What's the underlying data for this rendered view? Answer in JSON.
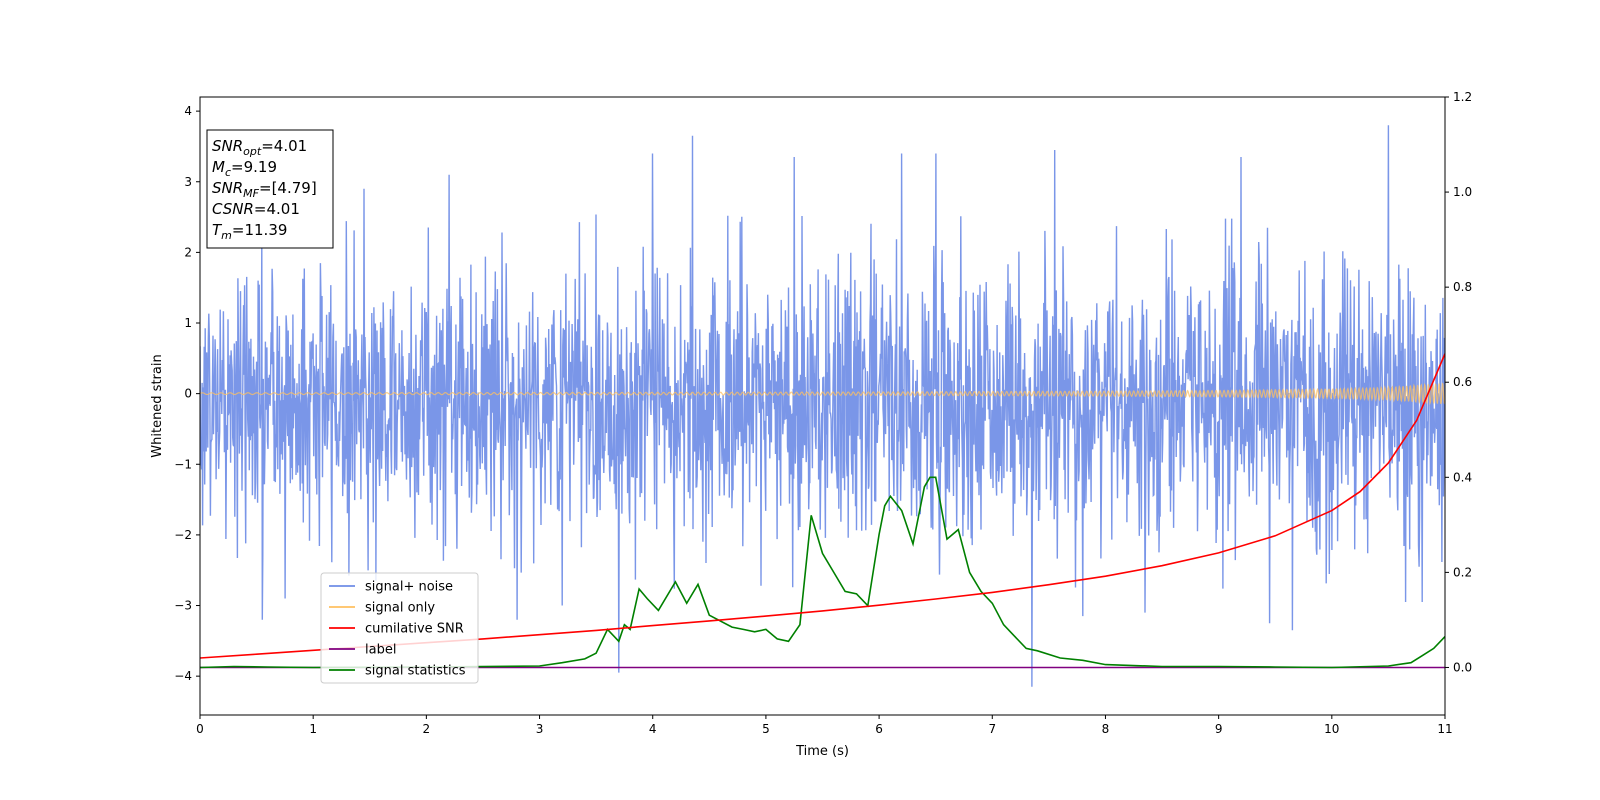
{
  "chart_data": {
    "type": "line",
    "title": "",
    "xlabel": "Time (s)",
    "ylabel": "Whitened strain",
    "y2label": "",
    "xlim": [
      0,
      11
    ],
    "ylim": [
      -4.55,
      4.2
    ],
    "y2lim": [
      -0.1,
      1.2
    ],
    "xticks": [
      0,
      1,
      2,
      3,
      4,
      5,
      6,
      7,
      8,
      9,
      10,
      11
    ],
    "yticks": [
      -4,
      -3,
      -2,
      -1,
      0,
      1,
      2,
      3,
      4
    ],
    "y2ticks": [
      0.0,
      0.2,
      0.4,
      0.6,
      0.8,
      1.0,
      1.2
    ],
    "grid": false,
    "legend_position": "lower-left",
    "series": [
      {
        "name": "signal+ noise",
        "axis": "left",
        "color": "#6f8de6",
        "envelope": {
          "x": [
            0,
            1,
            2,
            3,
            4,
            5,
            6,
            7,
            8,
            9,
            10,
            11
          ],
          "typical_max": [
            1.9,
            2.1,
            2.0,
            2.1,
            2.2,
            2.1,
            2.2,
            2.1,
            2.0,
            2.1,
            2.1,
            2.0
          ],
          "typical_min": [
            -2.2,
            -2.3,
            -2.2,
            -2.3,
            -2.4,
            -2.3,
            -2.4,
            -2.4,
            -2.3,
            -2.4,
            -2.3,
            -2.3
          ]
        },
        "peaks": [
          {
            "x": 0.55,
            "y": -3.2
          },
          {
            "x": 0.75,
            "y": -2.9
          },
          {
            "x": 1.45,
            "y": 2.9
          },
          {
            "x": 2.2,
            "y": 3.1
          },
          {
            "x": 2.8,
            "y": -3.2
          },
          {
            "x": 3.2,
            "y": -3.0
          },
          {
            "x": 3.7,
            "y": -3.95
          },
          {
            "x": 4.0,
            "y": 3.4
          },
          {
            "x": 4.35,
            "y": 3.65
          },
          {
            "x": 5.25,
            "y": 3.35
          },
          {
            "x": 6.2,
            "y": 3.4
          },
          {
            "x": 6.5,
            "y": 3.4
          },
          {
            "x": 7.35,
            "y": -4.15
          },
          {
            "x": 7.55,
            "y": 3.45
          },
          {
            "x": 7.8,
            "y": -3.15
          },
          {
            "x": 8.35,
            "y": -3.1
          },
          {
            "x": 9.2,
            "y": 3.35
          },
          {
            "x": 9.45,
            "y": -3.25
          },
          {
            "x": 9.65,
            "y": -3.35
          },
          {
            "x": 10.5,
            "y": 3.8
          },
          {
            "x": 10.65,
            "y": -2.95
          },
          {
            "x": 10.8,
            "y": -2.95
          }
        ]
      },
      {
        "name": "signal only",
        "axis": "left",
        "color": "#ffc060",
        "amplitude": {
          "x": [
            0,
            2,
            4,
            6,
            8,
            9,
            10,
            10.5,
            11
          ],
          "y": [
            0.012,
            0.014,
            0.018,
            0.024,
            0.035,
            0.045,
            0.065,
            0.09,
            0.15
          ]
        }
      },
      {
        "name": "cumilative SNR",
        "axis": "right",
        "color": "#ff0000",
        "x": [
          0,
          0.5,
          1,
          1.5,
          2,
          2.5,
          3,
          3.5,
          4,
          4.5,
          5,
          5.5,
          6,
          6.5,
          7,
          7.5,
          8,
          8.5,
          9,
          9.5,
          10,
          10.25,
          10.5,
          10.75,
          11
        ],
        "y": [
          0.02,
          0.028,
          0.036,
          0.044,
          0.052,
          0.06,
          0.069,
          0.078,
          0.088,
          0.098,
          0.108,
          0.119,
          0.131,
          0.144,
          0.158,
          0.174,
          0.192,
          0.214,
          0.241,
          0.277,
          0.33,
          0.37,
          0.43,
          0.52,
          0.66
        ]
      },
      {
        "name": "label",
        "axis": "right",
        "color": "#800080",
        "x": [
          0,
          11
        ],
        "y": [
          0.0,
          0.0
        ]
      },
      {
        "name": "signal statistics",
        "axis": "right",
        "color": "#008000",
        "x": [
          0,
          0.3,
          0.6,
          1.0,
          2.0,
          3.0,
          3.2,
          3.4,
          3.5,
          3.6,
          3.7,
          3.75,
          3.8,
          3.88,
          3.95,
          4.05,
          4.2,
          4.3,
          4.4,
          4.5,
          4.7,
          4.8,
          4.9,
          5.0,
          5.1,
          5.2,
          5.3,
          5.4,
          5.5,
          5.6,
          5.7,
          5.8,
          5.9,
          6.0,
          6.05,
          6.1,
          6.2,
          6.3,
          6.4,
          6.45,
          6.5,
          6.6,
          6.7,
          6.8,
          6.9,
          7.0,
          7.1,
          7.2,
          7.3,
          7.4,
          7.6,
          7.8,
          8.0,
          8.5,
          9.0,
          9.5,
          10.0,
          10.5,
          10.7,
          10.8,
          10.9,
          11.0
        ],
        "y": [
          0.0,
          0.002,
          0.001,
          0.0,
          0.001,
          0.003,
          0.01,
          0.018,
          0.03,
          0.08,
          0.055,
          0.09,
          0.08,
          0.165,
          0.145,
          0.12,
          0.18,
          0.135,
          0.175,
          0.11,
          0.085,
          0.08,
          0.075,
          0.08,
          0.06,
          0.055,
          0.09,
          0.32,
          0.24,
          0.2,
          0.16,
          0.155,
          0.13,
          0.28,
          0.34,
          0.36,
          0.33,
          0.26,
          0.38,
          0.4,
          0.4,
          0.27,
          0.29,
          0.2,
          0.16,
          0.135,
          0.09,
          0.065,
          0.04,
          0.035,
          0.02,
          0.015,
          0.006,
          0.002,
          0.002,
          0.001,
          0.0,
          0.003,
          0.01,
          0.025,
          0.04,
          0.065
        ]
      }
    ],
    "annotation_box": {
      "position": "top-left",
      "entries": [
        {
          "var": "SNR",
          "sub": "opt",
          "value": "=4.01"
        },
        {
          "var": "M",
          "sub": "c",
          "value": "=9.19"
        },
        {
          "var": "SNR",
          "sub": "MF",
          "value": "=[4.79]"
        },
        {
          "var": "CSNR",
          "sub": "",
          "value": "=4.01"
        },
        {
          "var": "T",
          "sub": "m",
          "value": "=11.39"
        }
      ]
    }
  }
}
